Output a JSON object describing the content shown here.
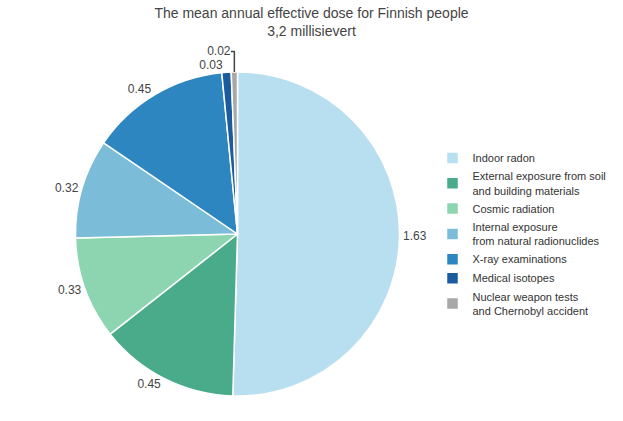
{
  "chart_data": {
    "type": "pie",
    "title": "The mean annual effective dose for Finnish people\n3,2 millisievert",
    "categories": [
      "Indoor radon",
      "External exposure from soil\nand building materials",
      "Cosmic radiation",
      "Internal exposure\nfrom natural radionuclides",
      "X-ray examinations",
      "Medical isotopes",
      "Nuclear weapon tests\nand Chernobyl accident"
    ],
    "values": [
      1.63,
      0.45,
      0.33,
      0.32,
      0.45,
      0.03,
      0.02
    ],
    "colors": [
      "#b8dff0",
      "#4aab8a",
      "#8dd4b0",
      "#7bbcd8",
      "#2e86c1",
      "#1a5c9e",
      "#a8a8a8"
    ],
    "data_labels": true,
    "legend": "right"
  }
}
